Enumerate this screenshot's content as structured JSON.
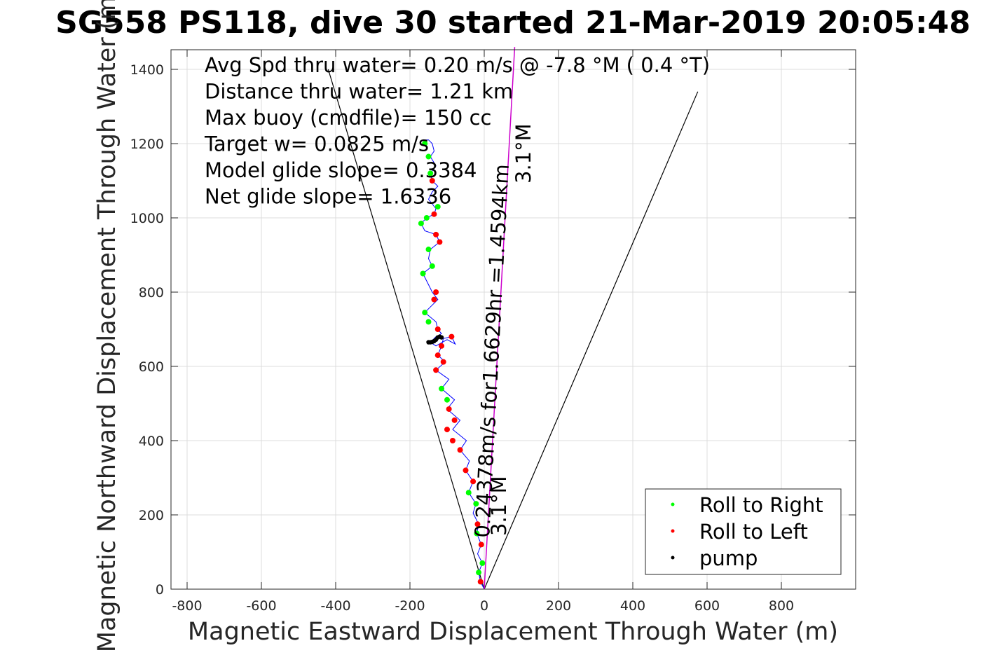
{
  "chart_data": {
    "type": "line",
    "title": "SG558 PS118, dive 30 started 21-Mar-2019 20:05:48",
    "xlabel": "Magnetic Eastward Displacement Through Water (m)",
    "ylabel": "Magnetic Northward Displacement Through Water (m)",
    "xlim": [
      -850,
      1000
    ],
    "ylim": [
      0,
      1460
    ],
    "xticks": [
      -800,
      -600,
      -400,
      -200,
      0,
      200,
      400,
      600,
      800
    ],
    "yticks": [
      0,
      200,
      400,
      600,
      800,
      1000,
      1200,
      1400
    ],
    "grid": true,
    "legend_position": "bottom-right",
    "annotations": [
      "Avg Spd thru water=  0.20 m/s @  -7.8 °M (  0.4 °T)",
      "Distance thru water=  1.21 km",
      "Max buoy (cmdfile)= 150 cc",
      "Target w= 0.0825 m/s",
      "Model glide slope= 0.3384",
      "Net glide slope= 1.6336"
    ],
    "rotated_labels": {
      "speed_label": "0.24378m/s for1.6629hr =1.4594km",
      "heading_label_low": "3.1°M",
      "heading_label_high": "3.1°M"
    },
    "cone_lines": [
      {
        "x": [
          0,
          -420
        ],
        "y": [
          0,
          1400
        ]
      },
      {
        "x": [
          0,
          575
        ],
        "y": [
          0,
          1340
        ]
      }
    ],
    "heading_line": {
      "x": [
        0,
        82
      ],
      "y": [
        0,
        1460
      ],
      "color": "#cc00cc"
    },
    "track": {
      "color": "#0000ff",
      "x": [
        0,
        -10,
        -15,
        -5,
        -18,
        -8,
        -20,
        -15,
        -30,
        -22,
        -42,
        -30,
        -50,
        -40,
        -65,
        -48,
        -85,
        -65,
        -100,
        -80,
        -115,
        -95,
        -130,
        -105,
        -125,
        -115,
        -110,
        -88,
        -78,
        -100,
        -130,
        -145,
        -130,
        -115,
        -125,
        -130,
        -160,
        -145,
        -125,
        -140,
        -150,
        -165,
        -140,
        -150,
        -145,
        -120,
        -130,
        -160,
        -170,
        -155,
        -135,
        -130,
        -150,
        -140,
        -125,
        -140,
        -145,
        -130,
        -145,
        -135,
        -140,
        -150,
        -165
      ],
      "y": [
        0,
        20,
        45,
        70,
        95,
        120,
        150,
        175,
        205,
        230,
        260,
        290,
        320,
        345,
        375,
        400,
        430,
        455,
        485,
        510,
        540,
        565,
        590,
        612,
        630,
        655,
        675,
        680,
        660,
        672,
        655,
        665,
        680,
        688,
        700,
        720,
        745,
        760,
        780,
        800,
        820,
        850,
        870,
        890,
        915,
        935,
        955,
        965,
        985,
        1000,
        1010,
        1025,
        1050,
        1070,
        1085,
        1100,
        1120,
        1140,
        1165,
        1180,
        1200,
        1210,
        1210
      ]
    },
    "series": [
      {
        "name": "Roll to Right",
        "color": "#00ff00",
        "x": [
          -15,
          -5,
          -20,
          -22,
          -42,
          -100,
          -115,
          -150,
          -160,
          -165,
          -140,
          -150,
          -170,
          -155,
          -125,
          -145,
          -150,
          -160
        ],
        "y": [
          45,
          70,
          150,
          230,
          260,
          510,
          540,
          720,
          745,
          850,
          870,
          915,
          985,
          1000,
          1030,
          1120,
          1165,
          1200
        ]
      },
      {
        "name": "Roll to Left",
        "color": "#ff0000",
        "x": [
          -10,
          -8,
          -18,
          -30,
          -50,
          -65,
          -85,
          -100,
          -80,
          -95,
          -130,
          -110,
          -125,
          -115,
          -88,
          -125,
          -135,
          -130,
          -120,
          -130,
          -135,
          -140
        ],
        "y": [
          20,
          120,
          175,
          290,
          320,
          375,
          400,
          430,
          455,
          485,
          590,
          612,
          630,
          655,
          680,
          700,
          780,
          800,
          935,
          955,
          1010,
          1100
        ]
      },
      {
        "name": "pump",
        "color": "#000000",
        "x": [
          -150,
          -145,
          -140,
          -135,
          -130,
          -125,
          -120,
          -115
        ],
        "y": [
          665,
          665,
          666,
          668,
          672,
          678,
          680,
          678
        ]
      }
    ]
  }
}
